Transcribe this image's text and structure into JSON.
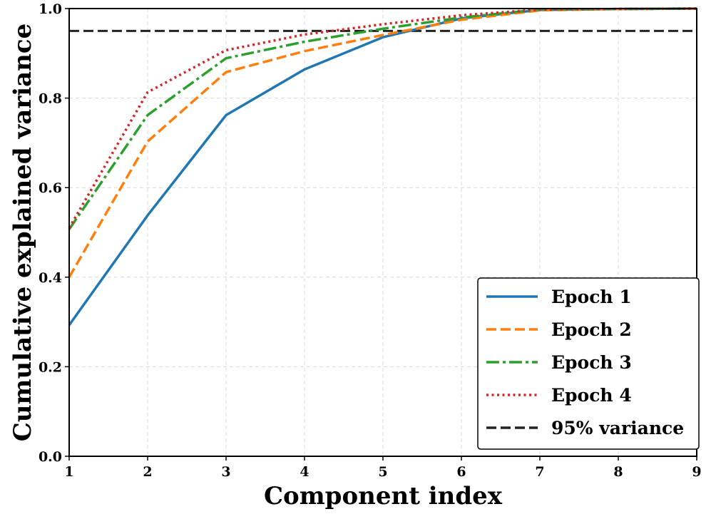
{
  "chart_data": {
    "type": "line",
    "xlabel": "Component index",
    "ylabel": "Cumulative explained variance",
    "xlim": [
      1,
      9
    ],
    "ylim": [
      0.0,
      1.0
    ],
    "xticks": [
      "1",
      "2",
      "3",
      "4",
      "5",
      "6",
      "7",
      "8",
      "9"
    ],
    "yticks": [
      "0.0",
      "0.2",
      "0.4",
      "0.6",
      "0.8",
      "1.0"
    ],
    "grid": true,
    "legend_position": "bottom-right",
    "x": [
      1,
      2,
      3,
      4,
      5,
      6,
      7,
      8,
      9
    ],
    "series": [
      {
        "name": "Epoch 1",
        "color": "#1f77b4",
        "style": "solid",
        "values": [
          0.293,
          0.538,
          0.762,
          0.864,
          0.936,
          0.978,
          0.997,
          0.999,
          1.0
        ]
      },
      {
        "name": "Epoch 2",
        "color": "#ff7f0e",
        "style": "dashed",
        "values": [
          0.4,
          0.703,
          0.858,
          0.905,
          0.941,
          0.975,
          0.996,
          0.999,
          1.0
        ]
      },
      {
        "name": "Epoch 3",
        "color": "#2ca02c",
        "style": "dashdot",
        "values": [
          0.507,
          0.762,
          0.889,
          0.926,
          0.955,
          0.98,
          0.998,
          0.999,
          1.0
        ]
      },
      {
        "name": "Epoch 4",
        "color": "#d62728",
        "style": "dotted",
        "values": [
          0.51,
          0.813,
          0.907,
          0.942,
          0.965,
          0.985,
          0.998,
          0.999,
          1.0
        ]
      }
    ],
    "reference_line": {
      "name": "95% variance",
      "value": 0.95,
      "color": "#222222",
      "style": "dashed"
    }
  }
}
